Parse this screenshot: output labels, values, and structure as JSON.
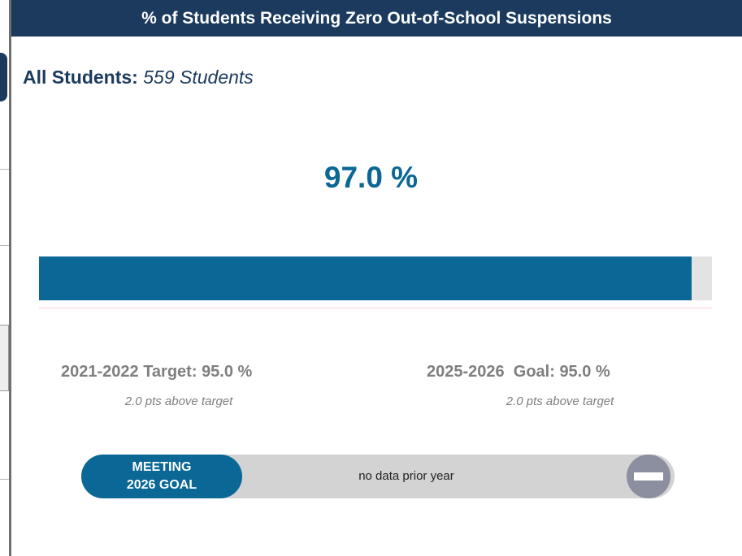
{
  "header": {
    "title": "% of Students Receiving Zero Out-of-School Suspensions"
  },
  "group": {
    "label": "All Students:",
    "count": "559 Students"
  },
  "metric": {
    "value": 97.0,
    "label": "97.0 %",
    "scale": [
      0,
      100
    ]
  },
  "target": {
    "label": "2021-2022 Target:",
    "value": "95.0 %",
    "note": "2.0 pts above target"
  },
  "goal": {
    "label": "2025-2026  Goal:",
    "value": "95.0 %",
    "note": "2.0 pts above target"
  },
  "status": {
    "badge": [
      "MEETING",
      "2026 GOAL"
    ],
    "trend": "no data prior year"
  }
}
